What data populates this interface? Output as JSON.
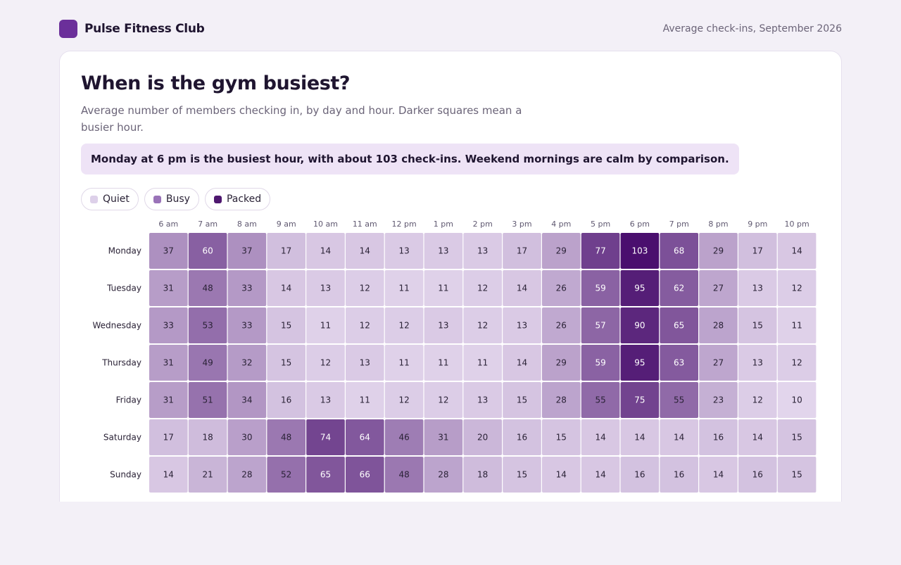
{
  "header": {
    "brand": "Pulse Fitness Club",
    "period": "Average check-ins, September 2026"
  },
  "colors": {
    "brand": "#6b2f9a",
    "scale_low": "#e2d5ec",
    "scale_high": "#4a0f6e",
    "callout_bg": "#eee3f6"
  },
  "card": {
    "title": "When is the gym busiest?",
    "subtitle": "Average number of members checking in, by day and hour. Darker squares mean a busier hour.",
    "callout": "Monday at 6 pm is the busiest hour, with about 103 check-ins. Weekend mornings are calm by comparison."
  },
  "legend": [
    {
      "label": "Quiet",
      "color": "#ddd0e9"
    },
    {
      "label": "Busy",
      "color": "#9a73b8"
    },
    {
      "label": "Packed",
      "color": "#4e176f"
    }
  ],
  "chart_data": {
    "type": "heatmap",
    "x": [
      "6 am",
      "7 am",
      "8 am",
      "9 am",
      "10 am",
      "11 am",
      "12 pm",
      "1 pm",
      "2 pm",
      "3 pm",
      "4 pm",
      "5 pm",
      "6 pm",
      "7 pm",
      "8 pm",
      "9 pm",
      "10 pm"
    ],
    "y": [
      "Monday",
      "Tuesday",
      "Wednesday",
      "Thursday",
      "Friday",
      "Saturday",
      "Sunday"
    ],
    "values": [
      [
        37,
        60,
        37,
        17,
        14,
        14,
        13,
        13,
        13,
        17,
        29,
        77,
        103,
        68,
        29,
        17,
        14
      ],
      [
        31,
        48,
        33,
        14,
        13,
        12,
        11,
        11,
        12,
        14,
        26,
        59,
        95,
        62,
        27,
        13,
        12
      ],
      [
        33,
        53,
        33,
        15,
        11,
        12,
        12,
        13,
        12,
        13,
        26,
        57,
        90,
        65,
        28,
        15,
        11
      ],
      [
        31,
        49,
        32,
        15,
        12,
        13,
        11,
        11,
        11,
        14,
        29,
        59,
        95,
        63,
        27,
        13,
        12
      ],
      [
        31,
        51,
        34,
        16,
        13,
        11,
        12,
        12,
        13,
        15,
        28,
        55,
        75,
        55,
        23,
        12,
        10
      ],
      [
        17,
        18,
        30,
        48,
        74,
        64,
        46,
        31,
        20,
        16,
        15,
        14,
        14,
        14,
        16,
        14,
        15
      ],
      [
        14,
        21,
        28,
        52,
        65,
        66,
        48,
        28,
        18,
        15,
        14,
        14,
        16,
        16,
        14,
        16,
        15
      ]
    ],
    "value_range": [
      10,
      103
    ]
  }
}
